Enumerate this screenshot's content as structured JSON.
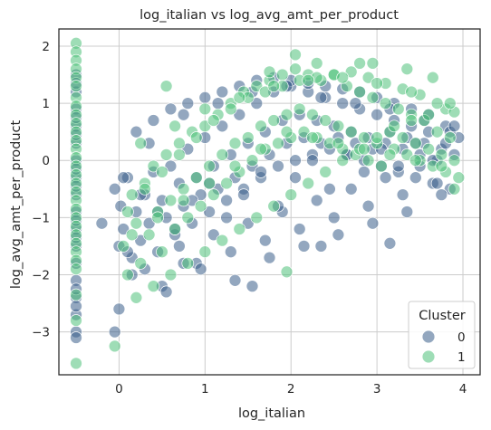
{
  "chart_data": {
    "type": "scatter",
    "title": "log_italian vs log_avg_amt_per_product",
    "xlabel": "log_italian",
    "ylabel": "log_avg_amt_per_product",
    "xlim": [
      -0.7,
      4.2
    ],
    "ylim": [
      -3.75,
      2.3
    ],
    "xticks": [
      0,
      1,
      2,
      3,
      4
    ],
    "yticks": [
      -3,
      -2,
      -1,
      0,
      1,
      2
    ],
    "grid": true,
    "point_alpha": 0.55,
    "legend": {
      "title": "Cluster",
      "placement": "lower-right",
      "entries": [
        "0",
        "1"
      ]
    },
    "series": [
      {
        "name": "0",
        "color": "#3b5f8a",
        "x": [
          -0.5,
          -0.5,
          -0.5,
          -0.5,
          -0.5,
          -0.5,
          -0.5,
          -0.5,
          -0.5,
          -0.5,
          -0.5,
          -0.5,
          -0.5,
          -0.5,
          -0.5,
          -0.5,
          -0.5,
          -0.5,
          -0.5,
          -0.5,
          -0.5,
          -0.5,
          -0.5,
          -0.5,
          -0.5,
          -0.5,
          -0.2,
          -0.05,
          0.0,
          0.02,
          0.05,
          0.1,
          0.15,
          0.2,
          0.25,
          0.3,
          0.35,
          0.4,
          0.45,
          0.5,
          0.55,
          0.6,
          0.65,
          0.7,
          0.75,
          0.8,
          0.85,
          0.9,
          0.95,
          1.0,
          1.05,
          1.1,
          1.15,
          1.2,
          1.25,
          1.3,
          1.35,
          1.4,
          1.45,
          1.5,
          1.55,
          1.6,
          1.65,
          1.7,
          1.75,
          1.8,
          1.85,
          1.9,
          1.95,
          2.0,
          2.05,
          2.1,
          2.15,
          2.2,
          2.25,
          2.3,
          2.35,
          2.4,
          2.45,
          2.5,
          2.55,
          2.6,
          2.65,
          2.7,
          2.75,
          2.8,
          2.85,
          2.9,
          2.95,
          3.0,
          3.05,
          3.1,
          3.15,
          3.2,
          3.25,
          3.3,
          3.35,
          3.4,
          3.45,
          3.5,
          3.55,
          3.6,
          3.65,
          3.7,
          3.75,
          3.8,
          3.85,
          3.9,
          3.95,
          0.1,
          0.3,
          0.5,
          0.7,
          0.9,
          1.1,
          1.3,
          1.5,
          1.7,
          1.9,
          2.1,
          2.3,
          2.5,
          2.7,
          2.9,
          3.1,
          3.3,
          3.5,
          3.7,
          0.2,
          0.4,
          0.6,
          0.8,
          1.0,
          1.2,
          1.4,
          1.6,
          1.8,
          2.0,
          2.2,
          2.4,
          2.6,
          2.8,
          3.0,
          3.2,
          3.4,
          3.6,
          3.8,
          0.05,
          0.25,
          0.45,
          0.65,
          0.85,
          1.05,
          1.25,
          1.45,
          1.65,
          1.85,
          2.05,
          2.25,
          2.45,
          2.65,
          2.85,
          3.05,
          3.25,
          3.45,
          3.65,
          3.85,
          0.15,
          0.55,
          0.95,
          1.35,
          1.75,
          2.15,
          2.55,
          2.95,
          3.35,
          3.75,
          0.35,
          0.75,
          1.15,
          1.55,
          1.95,
          2.35,
          2.75,
          3.15,
          3.55,
          3.9,
          -0.05,
          0.0,
          3.15,
          2.35,
          1.55,
          0.75
        ],
        "y": [
          1.5,
          1.2,
          0.9,
          0.6,
          0.3,
          0.0,
          -0.3,
          -0.6,
          -0.9,
          -1.2,
          -1.5,
          -1.8,
          -2.1,
          -2.4,
          -2.7,
          -3.0,
          -3.1,
          1.35,
          0.45,
          -0.45,
          -1.35,
          -2.25,
          -2.55,
          -0.15,
          0.75,
          -1.05,
          -1.1,
          -0.5,
          -1.5,
          -0.8,
          -1.2,
          -0.3,
          -1.7,
          -0.9,
          -1.4,
          -0.6,
          -1.1,
          -0.2,
          -1.6,
          -0.7,
          -1.0,
          -0.1,
          -1.3,
          -0.4,
          -0.8,
          0.2,
          -1.1,
          -0.3,
          -0.6,
          0.4,
          -0.9,
          -0.1,
          -0.5,
          0.6,
          -0.7,
          0.1,
          -0.3,
          0.8,
          -0.5,
          0.3,
          -0.1,
          1.0,
          -0.3,
          0.5,
          0.1,
          1.2,
          -0.1,
          0.7,
          0.3,
          1.3,
          0.0,
          0.8,
          0.4,
          1.2,
          0.1,
          0.7,
          0.3,
          1.1,
          0.2,
          0.6,
          0.4,
          1.0,
          0.1,
          0.5,
          0.3,
          0.9,
          0.0,
          0.4,
          0.2,
          0.8,
          -0.1,
          0.3,
          0.5,
          0.7,
          -0.2,
          0.2,
          0.4,
          0.6,
          -0.3,
          0.1,
          0.3,
          0.5,
          -0.4,
          0.0,
          0.2,
          0.3,
          -0.5,
          0.1,
          0.4,
          -1.6,
          -1.9,
          -2.2,
          -1.5,
          -1.8,
          -1.3,
          -1.6,
          -1.1,
          -1.4,
          -0.9,
          -1.2,
          -0.7,
          -1.0,
          -0.5,
          -0.8,
          -0.3,
          -0.6,
          -0.1,
          -0.4,
          0.5,
          0.7,
          0.9,
          1.0,
          1.1,
          1.2,
          1.3,
          1.4,
          1.45,
          1.4,
          1.35,
          1.3,
          1.25,
          1.2,
          1.1,
          1.0,
          0.9,
          0.8,
          0.6,
          -0.3,
          -0.6,
          -0.9,
          -1.2,
          -0.7,
          -0.4,
          -1.0,
          -0.6,
          -0.2,
          -0.8,
          -0.3,
          0.0,
          -0.5,
          0.1,
          -0.2,
          0.2,
          -0.1,
          0.3,
          0.0,
          0.5,
          -2.0,
          -2.3,
          -1.9,
          -2.1,
          -1.7,
          -1.5,
          -1.3,
          -1.1,
          -0.9,
          -0.6,
          0.3,
          0.8,
          1.0,
          1.2,
          1.3,
          1.1,
          1.0,
          0.9,
          0.7,
          0.6,
          -3.0,
          -2.6,
          -1.45,
          -1.5,
          -2.2,
          -1.8
        ]
      },
      {
        "name": "1",
        "color": "#4fc17a",
        "x": [
          -0.5,
          -0.5,
          -0.5,
          -0.5,
          -0.5,
          -0.5,
          -0.5,
          -0.5,
          -0.5,
          -0.5,
          -0.5,
          -0.5,
          -0.5,
          -0.5,
          -0.5,
          -0.5,
          -0.5,
          -0.5,
          -0.5,
          -0.5,
          -0.5,
          -0.5,
          -0.5,
          -0.5,
          -0.5,
          -0.5,
          -0.5,
          -0.5,
          -0.5,
          -0.5,
          -0.05,
          0.05,
          0.1,
          0.15,
          0.2,
          0.25,
          0.3,
          0.35,
          0.4,
          0.45,
          0.5,
          0.55,
          0.6,
          0.65,
          0.7,
          0.75,
          0.8,
          0.85,
          0.9,
          0.95,
          1.0,
          1.05,
          1.1,
          1.15,
          1.2,
          1.25,
          1.3,
          1.35,
          1.4,
          1.45,
          1.5,
          1.55,
          1.6,
          1.65,
          1.7,
          1.75,
          1.8,
          1.85,
          1.9,
          1.95,
          2.0,
          2.05,
          2.1,
          2.15,
          2.2,
          2.25,
          2.3,
          2.35,
          2.4,
          2.45,
          2.5,
          2.55,
          2.6,
          2.65,
          2.7,
          2.75,
          2.8,
          2.85,
          2.9,
          2.95,
          3.0,
          3.05,
          3.1,
          3.15,
          3.2,
          3.25,
          3.3,
          3.35,
          3.4,
          3.45,
          3.5,
          3.55,
          3.6,
          3.65,
          3.7,
          3.75,
          3.8,
          3.85,
          3.9,
          3.95,
          0.2,
          0.4,
          0.6,
          0.8,
          1.0,
          1.2,
          1.4,
          1.6,
          1.8,
          2.0,
          2.2,
          2.4,
          2.6,
          2.8,
          3.0,
          3.2,
          3.4,
          3.6,
          3.8,
          0.1,
          0.3,
          0.5,
          0.7,
          0.9,
          1.1,
          1.3,
          1.5,
          1.7,
          1.9,
          2.1,
          2.3,
          2.5,
          2.7,
          2.9,
          3.1,
          3.3,
          3.5,
          3.7,
          3.9,
          0.15,
          0.45,
          0.75,
          1.05,
          1.35,
          1.65,
          1.95,
          2.25,
          2.55,
          2.85,
          3.15,
          3.45,
          3.75,
          0.25,
          0.65,
          1.0,
          1.4,
          1.8,
          2.2,
          2.6,
          3.0,
          3.4,
          3.85,
          0.55,
          1.75,
          2.95,
          3.65,
          1.95,
          2.05,
          2.3,
          2.8,
          3.35,
          3.9
        ],
        "y": [
          2.05,
          1.9,
          1.75,
          1.6,
          1.45,
          1.3,
          1.1,
          0.95,
          0.8,
          0.65,
          0.5,
          0.35,
          0.2,
          0.05,
          -0.1,
          -0.25,
          -0.4,
          -0.55,
          -0.7,
          -0.85,
          -1.0,
          -1.15,
          -1.3,
          -1.45,
          -1.6,
          -1.75,
          -1.9,
          -2.35,
          -2.8,
          -3.55,
          -3.25,
          -1.5,
          -2.0,
          -0.6,
          -1.1,
          -1.8,
          -0.4,
          -1.3,
          -0.1,
          -0.9,
          -1.6,
          0.1,
          -0.7,
          -1.2,
          0.3,
          -0.5,
          -1.0,
          0.5,
          -0.3,
          -0.8,
          0.6,
          -0.1,
          -0.6,
          0.8,
          0.1,
          -0.4,
          1.0,
          0.3,
          -0.2,
          1.2,
          0.4,
          0.0,
          1.3,
          0.6,
          0.2,
          1.4,
          0.7,
          0.3,
          1.5,
          0.8,
          0.4,
          1.6,
          0.9,
          0.5,
          1.5,
          0.8,
          0.4,
          1.4,
          0.7,
          0.3,
          1.5,
          0.6,
          0.2,
          1.3,
          0.5,
          0.1,
          1.2,
          0.4,
          0.0,
          1.1,
          0.3,
          -0.1,
          1.0,
          0.5,
          0.2,
          0.9,
          0.4,
          0.1,
          0.8,
          0.3,
          0.0,
          0.7,
          0.2,
          -0.1,
          0.5,
          0.1,
          -0.2,
          0.4,
          0.0,
          -0.3,
          -2.4,
          -2.2,
          -2.0,
          -1.8,
          -1.6,
          -1.4,
          -1.2,
          -1.0,
          -0.8,
          -0.6,
          -0.4,
          -0.2,
          0.0,
          0.2,
          0.4,
          0.6,
          0.7,
          0.8,
          0.9,
          -0.9,
          -0.5,
          -0.2,
          0.1,
          0.4,
          0.7,
          0.9,
          1.1,
          1.2,
          1.3,
          1.4,
          1.45,
          1.5,
          1.55,
          1.45,
          1.35,
          1.25,
          1.15,
          1.0,
          0.85,
          -1.3,
          -1.0,
          -0.7,
          -0.4,
          -0.1,
          0.2,
          0.5,
          0.4,
          0.3,
          0.2,
          0.1,
          0.0,
          -0.1,
          0.3,
          0.6,
          0.9,
          1.1,
          1.3,
          1.4,
          1.45,
          1.35,
          1.2,
          1.0,
          1.3,
          1.55,
          1.7,
          1.45,
          -1.95,
          1.85,
          1.7,
          1.7,
          1.6,
          -0.5
        ]
      }
    ]
  }
}
